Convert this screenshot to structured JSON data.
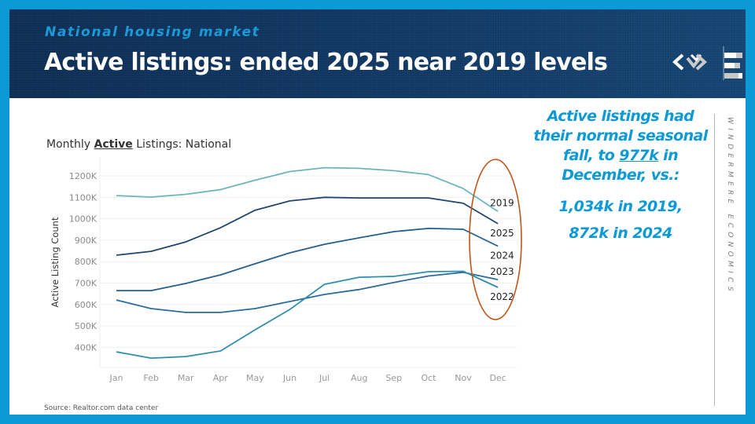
{
  "header": {
    "kicker": "National housing market",
    "title": "Active listings: ended 2025 near 2019 levels"
  },
  "chart_title": {
    "prefix": "Monthly ",
    "emphasis": "Active",
    "suffix": " Listings: National"
  },
  "callout": {
    "line1": "Active listings had their normal seasonal fall, to ",
    "highlight": "977k",
    "line2": " in December, vs.:",
    "comparison1": "1,034k in 2019,",
    "comparison2": "872k in 2024"
  },
  "brand_vertical": "WINDERMERE ECONOMICS",
  "source": "Source: Realtor.com data center",
  "colors": {
    "frame": "#0c9ad6",
    "header_bg": "#123a66",
    "accent_text": "#0c9ad6",
    "ellipse": "#c0561c"
  },
  "chart_data": {
    "type": "line",
    "title": "Monthly Active Listings: National",
    "xlabel": "",
    "ylabel": "Active Listing Count",
    "categories": [
      "Jan",
      "Feb",
      "Mar",
      "Apr",
      "May",
      "Jun",
      "Jul",
      "Aug",
      "Sep",
      "Oct",
      "Nov",
      "Dec"
    ],
    "yticks": [
      400,
      500,
      600,
      700,
      800,
      900,
      1000,
      1100,
      1200
    ],
    "ytick_labels": [
      "400K",
      "500K",
      "600K",
      "700K",
      "800K",
      "900K",
      "1000K",
      "1100K",
      "1200K"
    ],
    "ylim": [
      300,
      1265
    ],
    "grid": true,
    "legend": "direct labels at right end of each line",
    "series": [
      {
        "name": "2019",
        "color": "#6bb6bd",
        "values": [
          1108,
          1101,
          1114,
          1136,
          1180,
          1220,
          1238,
          1235,
          1224,
          1206,
          1141,
          1034
        ]
      },
      {
        "name": "2025",
        "color": "#1f4670",
        "values": [
          830,
          848,
          892,
          958,
          1040,
          1083,
          1100,
          1097,
          1097,
          1097,
          1072,
          977
        ]
      },
      {
        "name": "2024",
        "color": "#235f8f",
        "values": [
          665,
          665,
          698,
          738,
          790,
          841,
          881,
          911,
          940,
          955,
          951,
          872
        ]
      },
      {
        "name": "2023",
        "color": "#2a6d9c",
        "values": [
          621,
          581,
          563,
          563,
          581,
          614,
          647,
          670,
          703,
          733,
          750,
          716
        ]
      },
      {
        "name": "2022",
        "color": "#2f8fab",
        "values": [
          379,
          350,
          357,
          383,
          482,
          577,
          694,
          727,
          731,
          753,
          755,
          680
        ]
      }
    ],
    "annotation": "Ellipse highlighting December values"
  }
}
